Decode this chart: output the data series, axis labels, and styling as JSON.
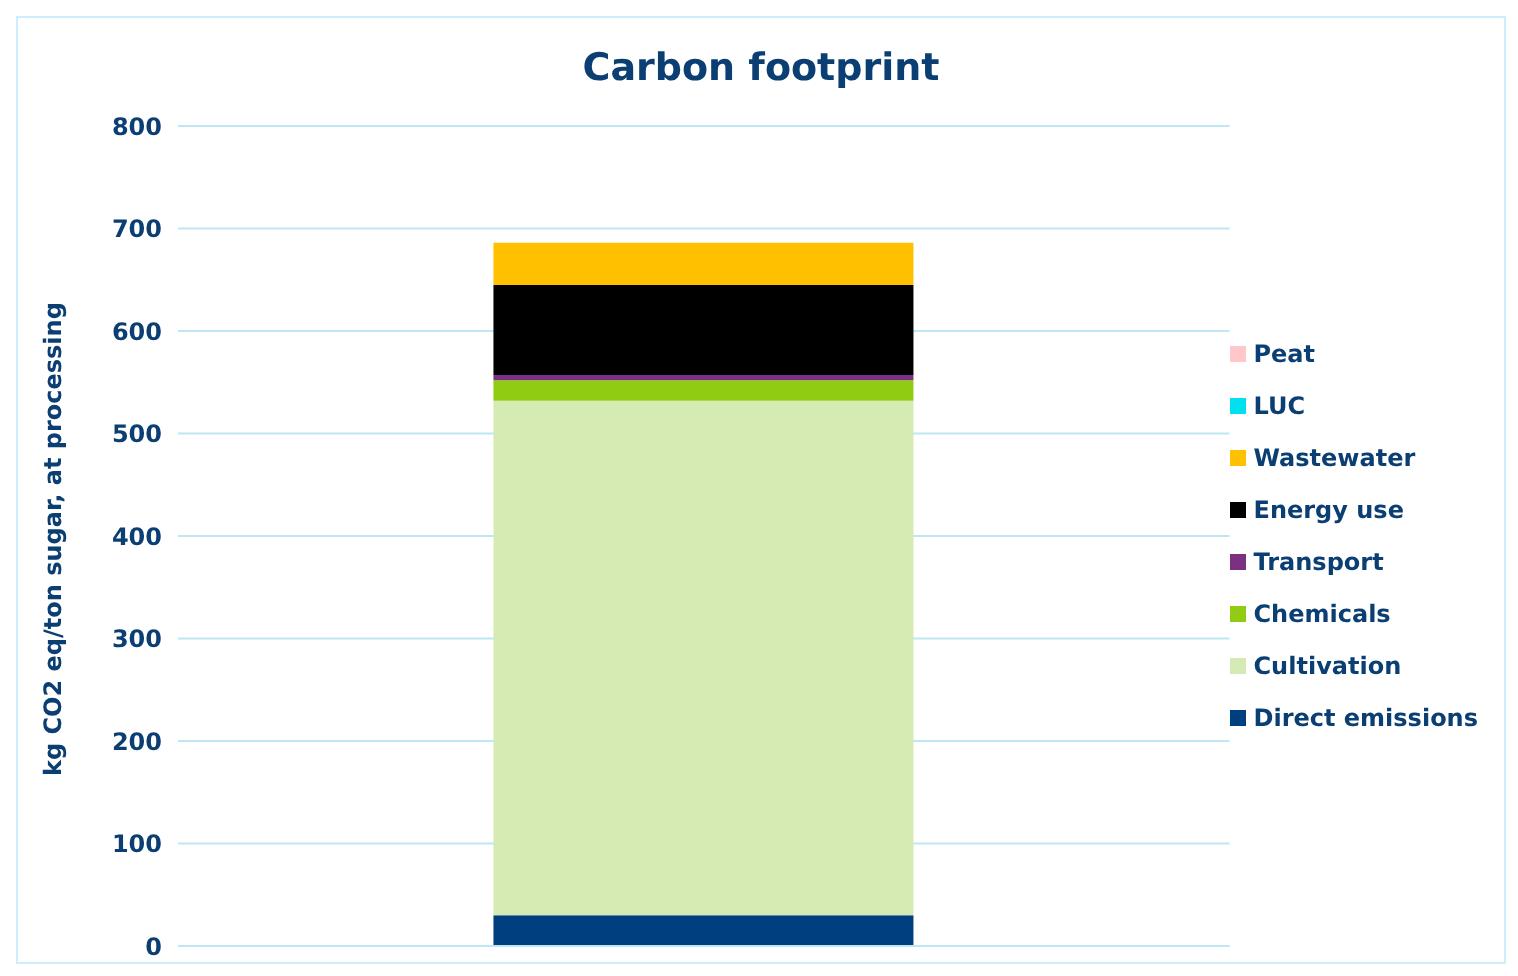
{
  "chart_data": {
    "type": "bar",
    "title": "Carbon footprint",
    "ylabel": "kg CO2 eq/ton sugar, at processing",
    "categories": [
      null
    ],
    "stacked": true,
    "series": [
      {
        "name": "Direct emissions",
        "color": "#003f7f",
        "values": [
          30
        ]
      },
      {
        "name": "Cultivation",
        "color": "#d5ebb3",
        "values": [
          502
        ]
      },
      {
        "name": "Chemicals",
        "color": "#8fcc12",
        "values": [
          20
        ]
      },
      {
        "name": "Transport",
        "color": "#7a3182",
        "values": [
          5
        ]
      },
      {
        "name": "Energy use",
        "color": "#000000",
        "values": [
          88
        ]
      },
      {
        "name": "Wastewater",
        "color": "#ffc000",
        "values": [
          41
        ]
      },
      {
        "name": "LUC",
        "color": "#00e0f0",
        "values": [
          0
        ]
      },
      {
        "name": "Peat",
        "color": "#ffc7c9",
        "values": [
          0
        ]
      }
    ],
    "ylim": [
      0,
      800
    ],
    "yticks": [
      0,
      100,
      200,
      300,
      400,
      500,
      600,
      700,
      800
    ],
    "grid": "y",
    "legend": "right"
  }
}
